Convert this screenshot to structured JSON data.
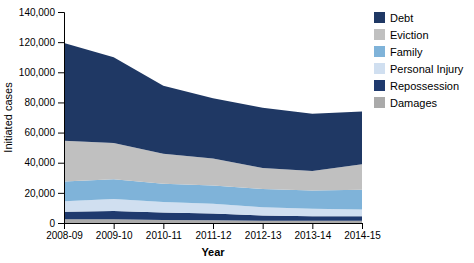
{
  "chart_data": {
    "type": "area",
    "stacked": true,
    "xlabel": "Year",
    "ylabel": "Initiated cases",
    "categories": [
      "2008-09",
      "2009-10",
      "2010-11",
      "2011-12",
      "2012-13",
      "2013-14",
      "2014-15"
    ],
    "series": [
      {
        "name": "Damages",
        "color": "#aaaaaa",
        "values": [
          2500,
          2500,
          2000,
          1800,
          1500,
          1500,
          1500
        ]
      },
      {
        "name": "Repossession",
        "color": "#1f3a6e",
        "values": [
          5000,
          5500,
          5000,
          4500,
          3500,
          3000,
          3000
        ]
      },
      {
        "name": "Personal Injury",
        "color": "#d0dff0",
        "values": [
          7000,
          8000,
          7000,
          6500,
          5500,
          5000,
          4500
        ]
      },
      {
        "name": "Family",
        "color": "#7fb3d9",
        "values": [
          13000,
          13000,
          12000,
          12000,
          12000,
          12000,
          13000
        ]
      },
      {
        "name": "Eviction",
        "color": "#c0c0c0",
        "values": [
          27000,
          24000,
          20000,
          18000,
          14000,
          13000,
          17000
        ]
      },
      {
        "name": "Debt",
        "color": "#1f3864",
        "values": [
          65000,
          57000,
          45000,
          40000,
          40000,
          38000,
          35000
        ]
      }
    ],
    "ylim": [
      0,
      140000
    ],
    "yticks": [
      0,
      {
        "value": 20000,
        "label": "20,000"
      },
      {
        "value": 40000,
        "label": "40,000"
      },
      {
        "value": 60000,
        "label": "60,000"
      },
      {
        "value": 80000,
        "label": "80,000"
      },
      {
        "value": 100000,
        "label": "100,000"
      },
      {
        "value": 120000,
        "label": "120,000"
      },
      {
        "value": 140000,
        "label": "140,000"
      }
    ],
    "grid": false,
    "legend": "right"
  }
}
